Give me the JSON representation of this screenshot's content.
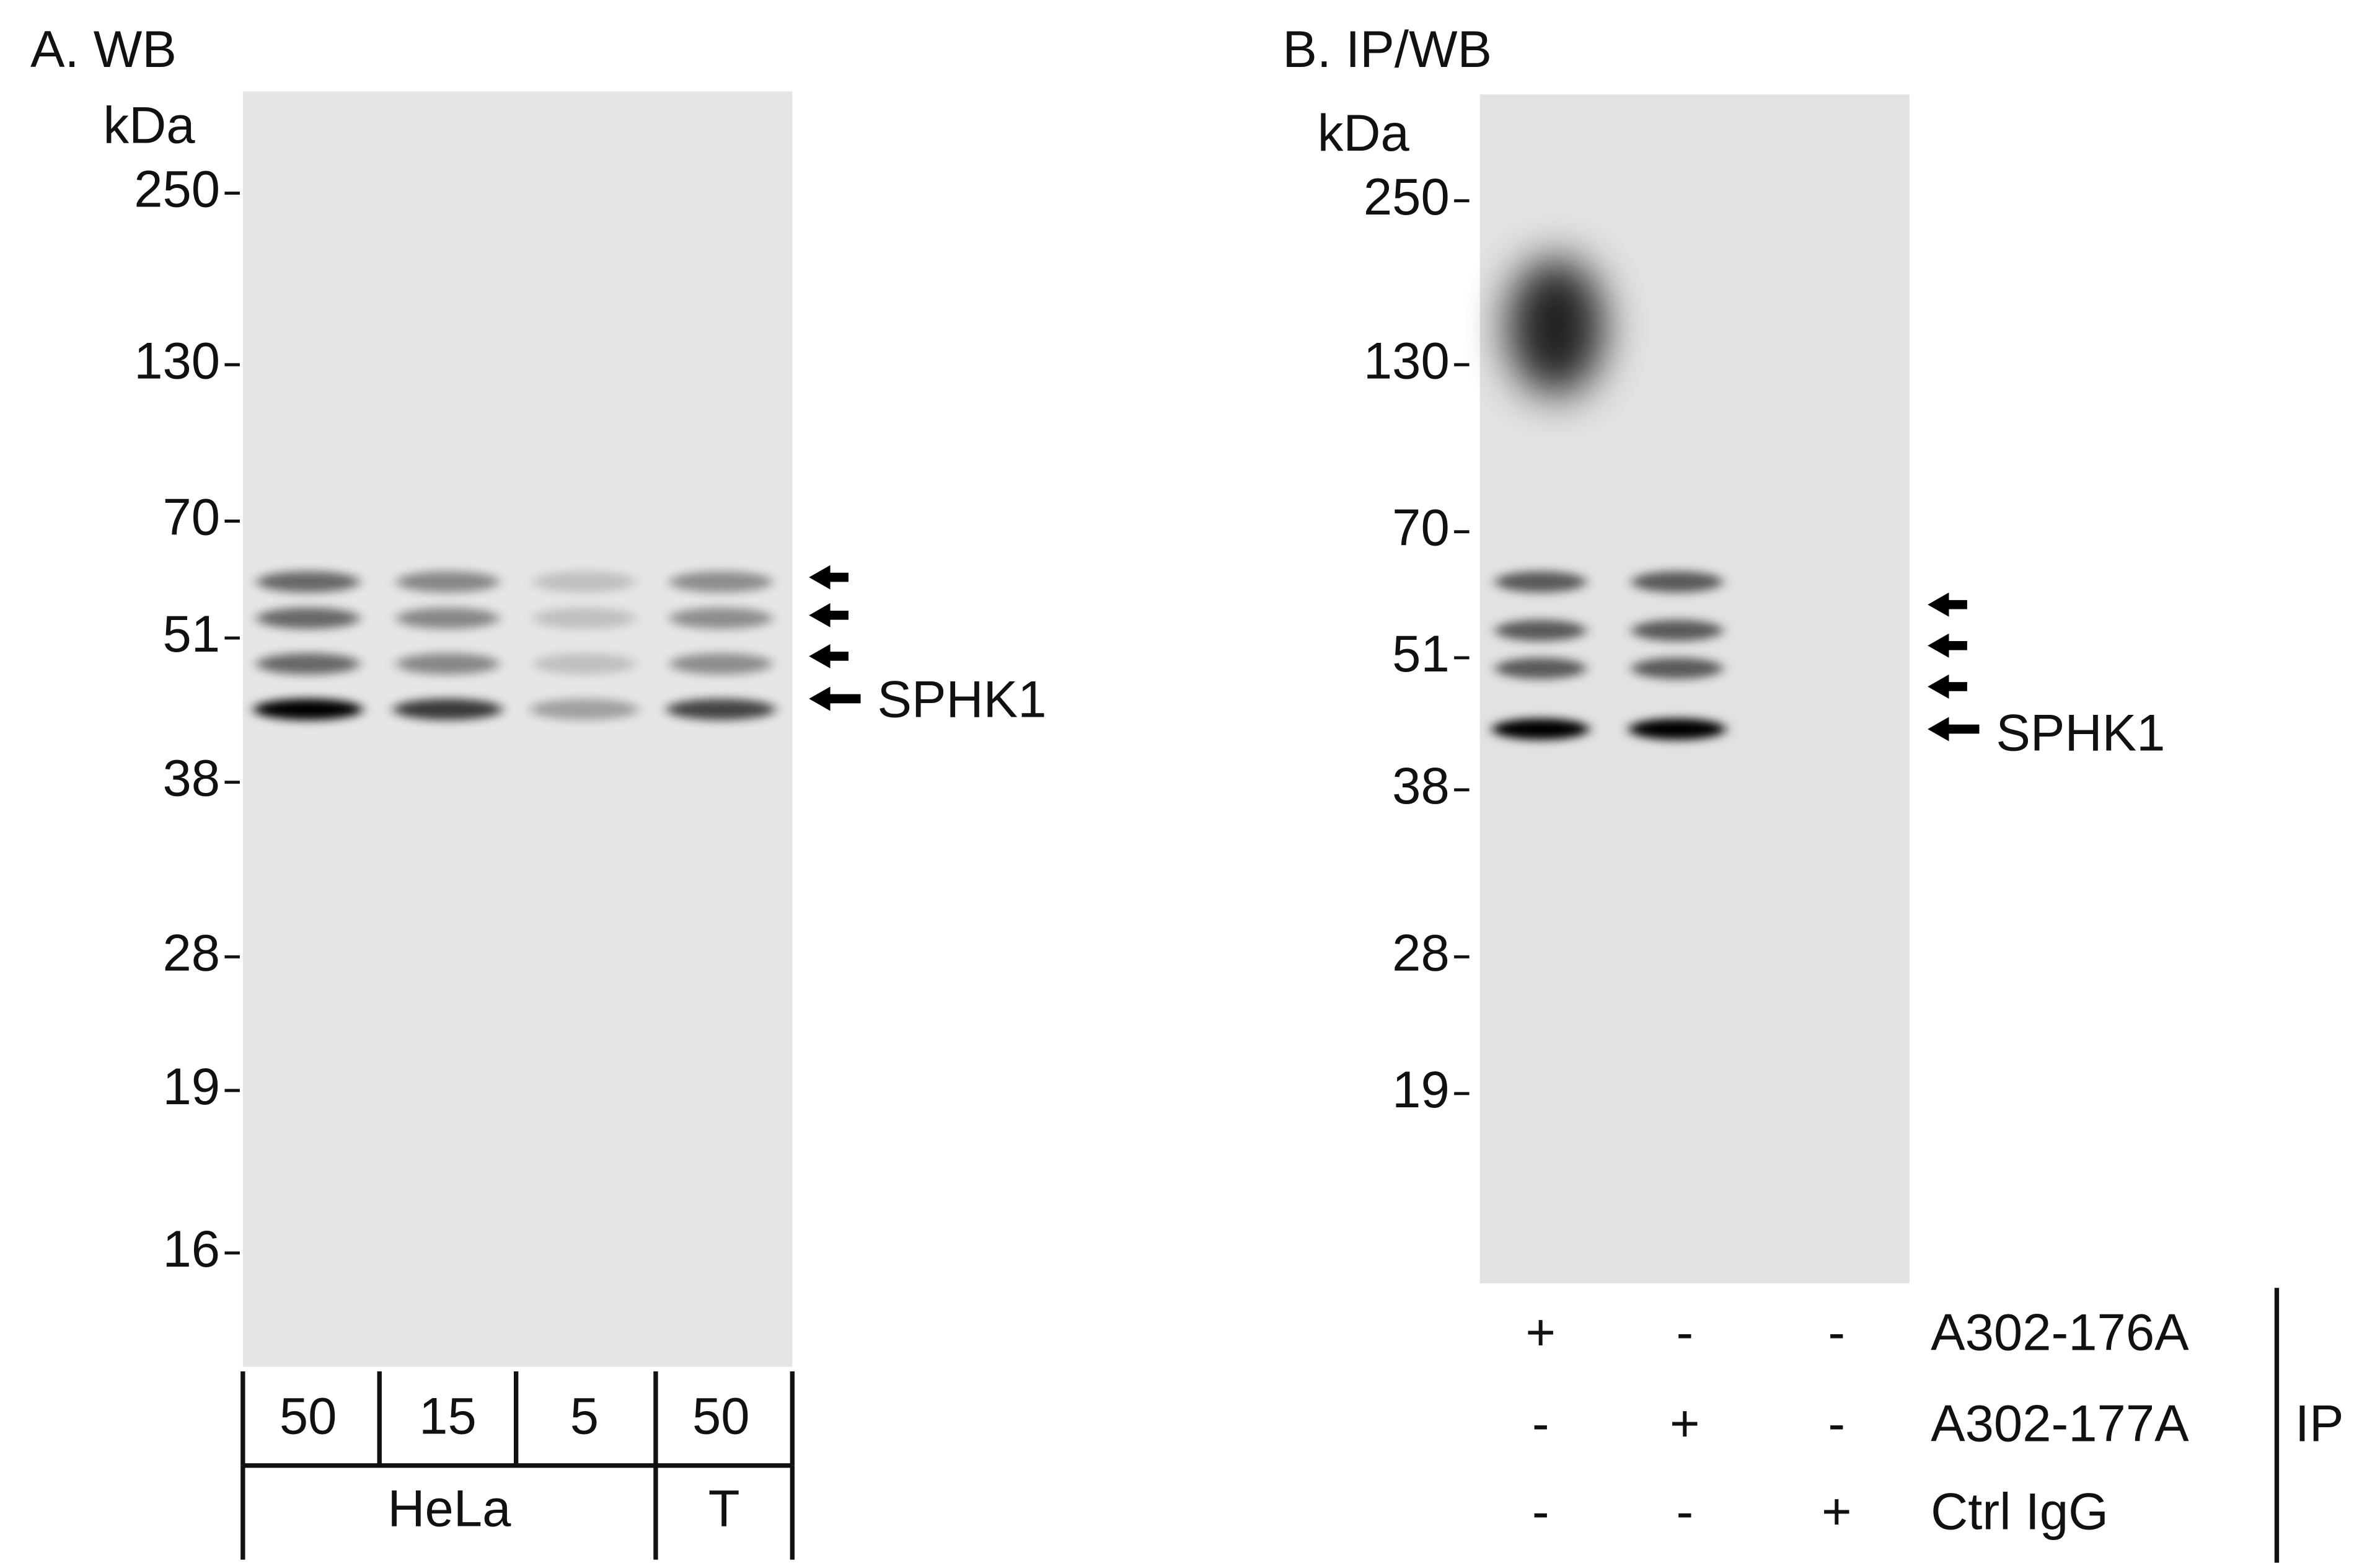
{
  "panel_a": {
    "title": "A. WB",
    "unit": "kDa",
    "markers": [
      "250",
      "130",
      "70",
      "51",
      "38",
      "28",
      "19",
      "16"
    ],
    "target": "SPHK1",
    "loads": [
      "50",
      "15",
      "5",
      "50"
    ],
    "groups": [
      "HeLa",
      "T"
    ]
  },
  "panel_b": {
    "title": "B. IP/WB",
    "unit": "kDa",
    "markers": [
      "250",
      "130",
      "70",
      "51",
      "38",
      "28",
      "19"
    ],
    "target": "SPHK1",
    "rows": [
      {
        "label": "A302-176A",
        "marks": [
          "+",
          "-",
          "-"
        ]
      },
      {
        "label": "A302-177A",
        "marks": [
          "-",
          "+",
          "-"
        ]
      },
      {
        "label": "Ctrl IgG",
        "marks": [
          "-",
          "-",
          "+"
        ]
      }
    ],
    "bracket": "IP"
  }
}
